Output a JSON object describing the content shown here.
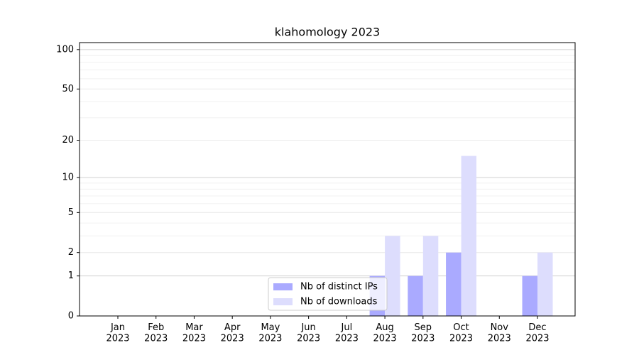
{
  "chart_data": {
    "type": "bar",
    "title": "klahomology 2023",
    "categories": [
      "Jan\n2023",
      "Feb\n2023",
      "Mar\n2023",
      "Apr\n2023",
      "May\n2023",
      "Jun\n2023",
      "Jul\n2023",
      "Aug\n2023",
      "Sep\n2023",
      "Oct\n2023",
      "Nov\n2023",
      "Dec\n2023"
    ],
    "series": [
      {
        "name": "Nb of distinct IPs",
        "color": "#aaaaff",
        "values": [
          0,
          0,
          0,
          0,
          0,
          0,
          0,
          1,
          1,
          2,
          0,
          1
        ]
      },
      {
        "name": "Nb of downloads",
        "color": "#ddddfd",
        "values": [
          0,
          0,
          0,
          0,
          0,
          0,
          0,
          3,
          3,
          15,
          0,
          2
        ]
      }
    ],
    "yscale": "log1p",
    "ylim": [
      0,
      113
    ],
    "yticks": [
      0,
      1,
      2,
      5,
      10,
      20,
      50,
      100
    ],
    "grid": true,
    "legend": "lower center"
  }
}
